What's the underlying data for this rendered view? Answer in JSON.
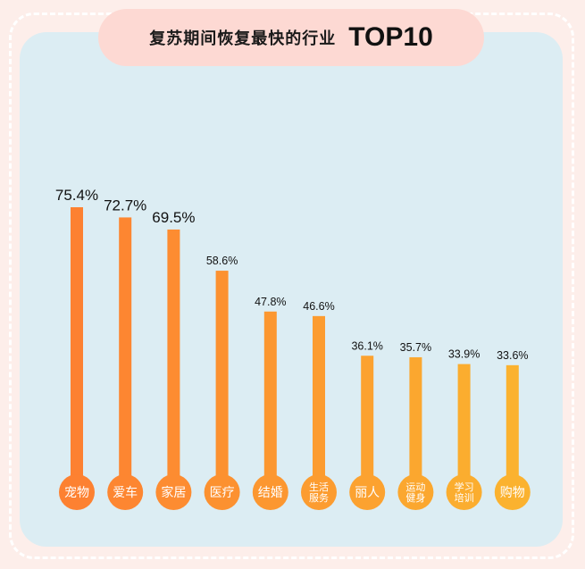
{
  "title": {
    "main": "复苏期间恢复最快的行业",
    "emphasis": "TOP10"
  },
  "colors": {
    "background": "#fdeeea",
    "panel": "#dcedf3",
    "title_pill": "#fdd9d3",
    "bar_start": "#fd8131",
    "bar_end": "#fbb22f"
  },
  "chart_data": {
    "type": "bar",
    "title": "复苏期间恢复最快的行业 TOP10",
    "categories": [
      "宠物",
      "爱车",
      "家居",
      "医疗",
      "结婚",
      "生活服务",
      "丽人",
      "运动健身",
      "学习培训",
      "购物"
    ],
    "category_lines": [
      [
        "宠物"
      ],
      [
        "爱车"
      ],
      [
        "家居"
      ],
      [
        "医疗"
      ],
      [
        "结婚"
      ],
      [
        "生活",
        "服务"
      ],
      [
        "丽人"
      ],
      [
        "运动",
        "健身"
      ],
      [
        "学习",
        "培训"
      ],
      [
        "购物"
      ]
    ],
    "values": [
      75.4,
      72.7,
      69.5,
      58.6,
      47.8,
      46.6,
      36.1,
      35.7,
      33.9,
      33.6
    ],
    "value_labels": [
      "75.4%",
      "72.7%",
      "69.5%",
      "58.6%",
      "47.8%",
      "46.6%",
      "36.1%",
      "35.7%",
      "33.9%",
      "33.6%"
    ],
    "unit": "%",
    "ylim": [
      0,
      75.4
    ],
    "grid": false,
    "legend": "none"
  }
}
